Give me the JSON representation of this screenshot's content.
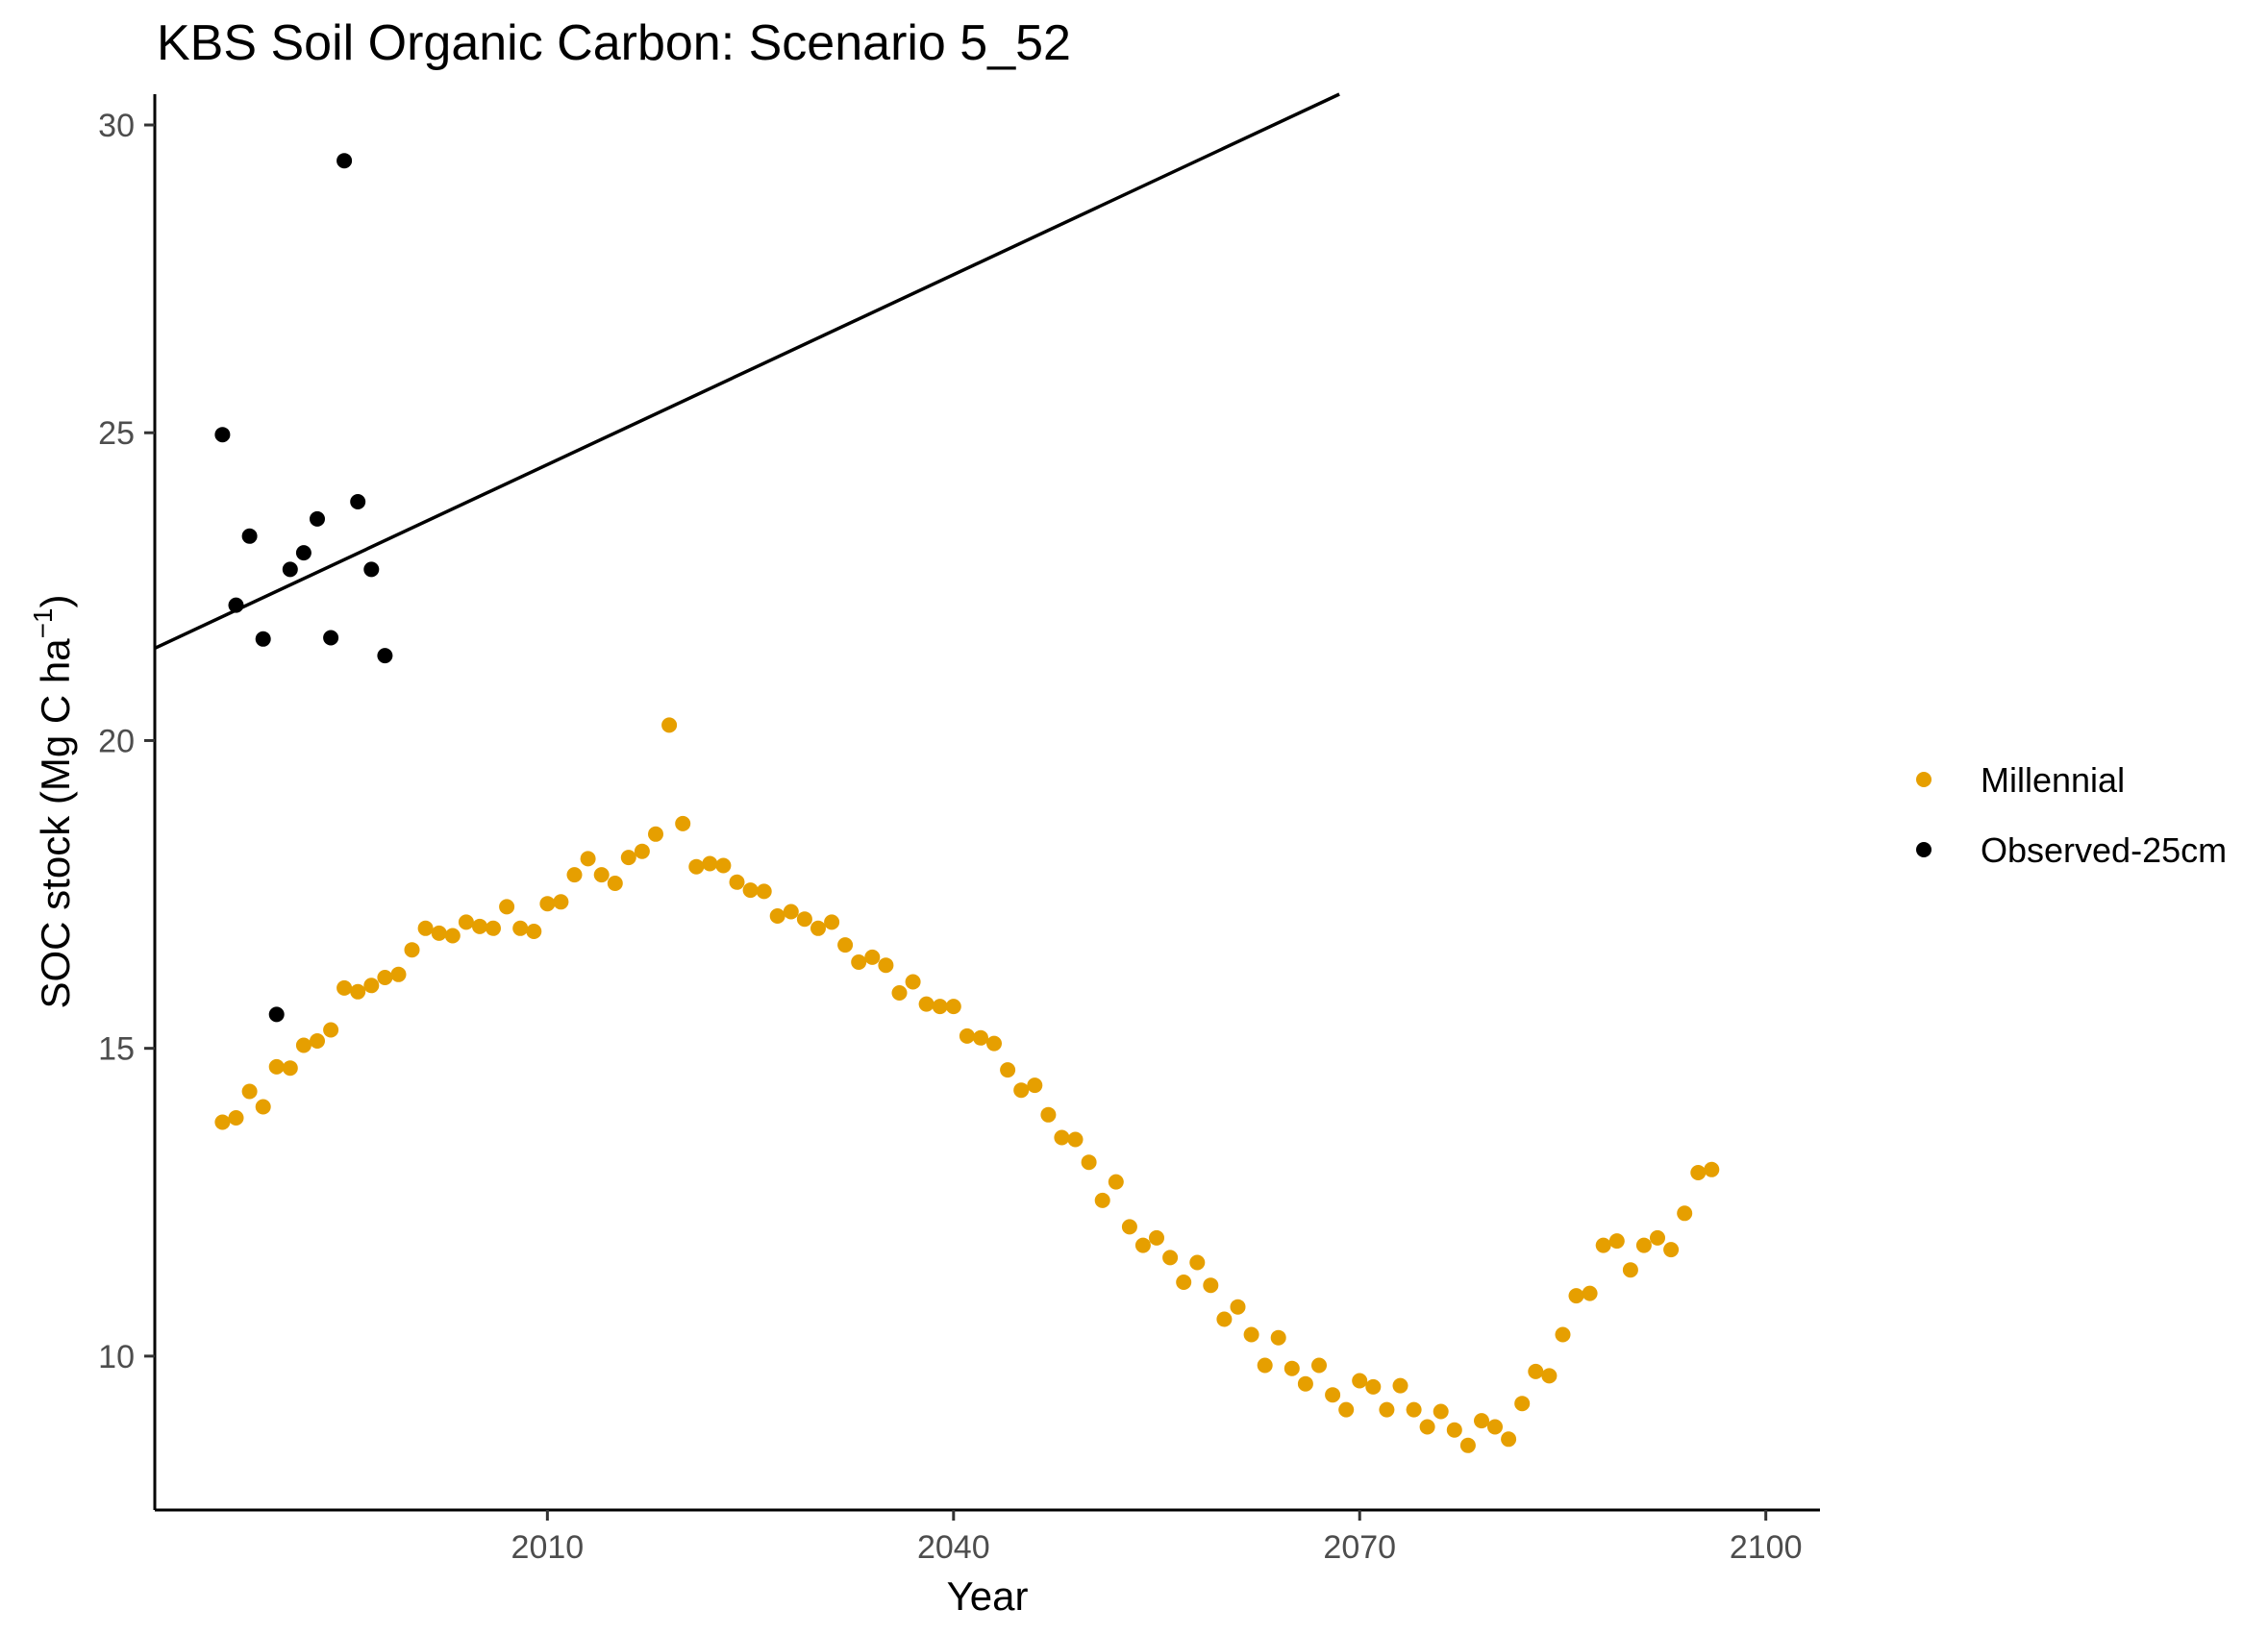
{
  "chart_data": {
    "type": "scatter",
    "title": "KBS Soil Organic Carbon: Scenario  5_52",
    "xlabel": "Year",
    "ylabel": "SOC stock (Mg C ha",
    "ylabel_superscript": "−1",
    "ylabel_close": ")",
    "xlim": [
      1981,
      2104
    ],
    "ylim": [
      7.5,
      30.5
    ],
    "x_ticks": [
      2010,
      2040,
      2070,
      2100
    ],
    "y_ticks": [
      10,
      15,
      20,
      25,
      30
    ],
    "grid": false,
    "legend_position": "right",
    "series": [
      {
        "name": "Millennial",
        "color": "#E69F00",
        "points": [
          [
            1986,
            13.8
          ],
          [
            1987,
            13.87
          ],
          [
            1988,
            14.3
          ],
          [
            1989,
            14.05
          ],
          [
            1990,
            14.7
          ],
          [
            1991,
            14.68
          ],
          [
            1992,
            15.05
          ],
          [
            1993,
            15.12
          ],
          [
            1994,
            15.3
          ],
          [
            1995,
            15.98
          ],
          [
            1996,
            15.92
          ],
          [
            1997,
            16.02
          ],
          [
            1998,
            16.15
          ],
          [
            1999,
            16.2
          ],
          [
            2000,
            16.6
          ],
          [
            2001,
            16.95
          ],
          [
            2002,
            16.87
          ],
          [
            2003,
            16.83
          ],
          [
            2004,
            17.05
          ],
          [
            2005,
            16.98
          ],
          [
            2006,
            16.95
          ],
          [
            2007,
            17.3
          ],
          [
            2008,
            16.95
          ],
          [
            2009,
            16.9
          ],
          [
            2010,
            17.35
          ],
          [
            2011,
            17.38
          ],
          [
            2012,
            17.82
          ],
          [
            2013,
            18.08
          ],
          [
            2014,
            17.82
          ],
          [
            2015,
            17.68
          ],
          [
            2016,
            18.1
          ],
          [
            2017,
            18.2
          ],
          [
            2018,
            18.48
          ],
          [
            2019,
            20.25
          ],
          [
            2020,
            18.65
          ],
          [
            2021,
            17.95
          ],
          [
            2022,
            18.0
          ],
          [
            2023,
            17.97
          ],
          [
            2024,
            17.7
          ],
          [
            2025,
            17.57
          ],
          [
            2026,
            17.55
          ],
          [
            2027,
            17.15
          ],
          [
            2028,
            17.22
          ],
          [
            2029,
            17.1
          ],
          [
            2030,
            16.95
          ],
          [
            2031,
            17.05
          ],
          [
            2032,
            16.68
          ],
          [
            2033,
            16.4
          ],
          [
            2034,
            16.48
          ],
          [
            2035,
            16.35
          ],
          [
            2036,
            15.9
          ],
          [
            2037,
            16.08
          ],
          [
            2038,
            15.72
          ],
          [
            2039,
            15.68
          ],
          [
            2040,
            15.68
          ],
          [
            2041,
            15.2
          ],
          [
            2042,
            15.17
          ],
          [
            2043,
            15.08
          ],
          [
            2044,
            14.65
          ],
          [
            2045,
            14.32
          ],
          [
            2046,
            14.4
          ],
          [
            2047,
            13.92
          ],
          [
            2048,
            13.55
          ],
          [
            2049,
            13.52
          ],
          [
            2050,
            13.15
          ],
          [
            2051,
            12.53
          ],
          [
            2052,
            12.83
          ],
          [
            2053,
            12.1
          ],
          [
            2054,
            11.8
          ],
          [
            2055,
            11.92
          ],
          [
            2056,
            11.6
          ],
          [
            2057,
            11.2
          ],
          [
            2058,
            11.52
          ],
          [
            2059,
            11.15
          ],
          [
            2060,
            10.6
          ],
          [
            2061,
            10.8
          ],
          [
            2062,
            10.35
          ],
          [
            2063,
            9.85
          ],
          [
            2064,
            10.3
          ],
          [
            2065,
            9.8
          ],
          [
            2066,
            9.55
          ],
          [
            2067,
            9.85
          ],
          [
            2068,
            9.37
          ],
          [
            2069,
            9.13
          ],
          [
            2070,
            9.6
          ],
          [
            2071,
            9.5
          ],
          [
            2072,
            9.13
          ],
          [
            2073,
            9.52
          ],
          [
            2074,
            9.13
          ],
          [
            2075,
            8.85
          ],
          [
            2076,
            9.1
          ],
          [
            2077,
            8.8
          ],
          [
            2078,
            8.55
          ],
          [
            2079,
            8.95
          ],
          [
            2080,
            8.85
          ],
          [
            2081,
            8.65
          ],
          [
            2082,
            9.23
          ],
          [
            2083,
            9.75
          ],
          [
            2084,
            9.68
          ],
          [
            2085,
            10.35
          ],
          [
            2086,
            10.98
          ],
          [
            2087,
            11.02
          ],
          [
            2088,
            11.8
          ],
          [
            2089,
            11.87
          ],
          [
            2090,
            11.4
          ],
          [
            2091,
            11.8
          ],
          [
            2092,
            11.92
          ],
          [
            2093,
            11.73
          ],
          [
            2094,
            12.32
          ],
          [
            2095,
            12.98
          ],
          [
            2096,
            13.03
          ]
        ]
      },
      {
        "name": "Observed-25cm",
        "color": "#000000",
        "points": [
          [
            1986,
            24.97
          ],
          [
            1987,
            22.2
          ],
          [
            1988,
            23.32
          ],
          [
            1989,
            21.65
          ],
          [
            1990,
            15.55
          ],
          [
            1991,
            22.78
          ],
          [
            1992,
            23.05
          ],
          [
            1993,
            23.6
          ],
          [
            1994,
            21.67
          ],
          [
            1995,
            29.42
          ],
          [
            1996,
            23.88
          ],
          [
            1997,
            22.78
          ],
          [
            1998,
            21.38
          ]
        ]
      }
    ],
    "trend_line": {
      "color": "#000000",
      "x": [
        1981,
        2068.5
      ],
      "y": [
        21.5,
        30.5
      ]
    }
  }
}
